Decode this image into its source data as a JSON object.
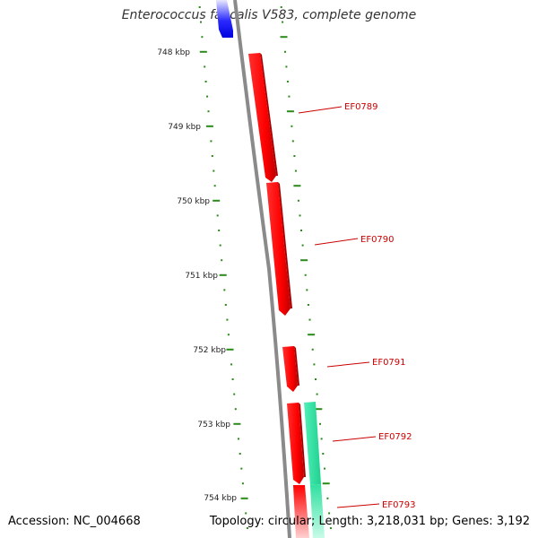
{
  "title": "Enterococcus faecalis V583, complete genome",
  "footer": {
    "accession": "Accession: NC_004668",
    "stats": "Topology: circular; Length: 3,218,031 bp; Genes: 3,192"
  },
  "ruler": {
    "labels": [
      "748 kbp",
      "749 kbp",
      "750 kbp",
      "751 kbp",
      "752 kbp",
      "753 kbp",
      "754 kbp"
    ]
  },
  "genes": [
    {
      "name": "",
      "strand": "reverse",
      "color": "#1a1aff"
    },
    {
      "name": "EF0789",
      "strand": "forward",
      "color": "#ff0000"
    },
    {
      "name": "EF0790",
      "strand": "forward",
      "color": "#ff0000"
    },
    {
      "name": "EF0791",
      "strand": "forward",
      "color": "#ff0000"
    },
    {
      "name": "EF0792",
      "strand": "forward",
      "color": "#ff0000"
    },
    {
      "name": "EF0793",
      "strand": "forward",
      "color": "#ff0000"
    },
    {
      "name": "",
      "strand": "reverse",
      "color": "#2ee6a8"
    }
  ],
  "colors": {
    "backbone": "#8a8a8a",
    "tick": "#2a8a1a",
    "label": "#cc0000",
    "leader": "#cc0000"
  }
}
